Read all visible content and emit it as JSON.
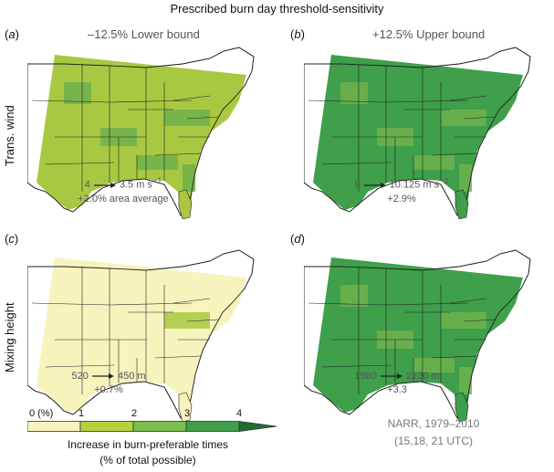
{
  "title": "Prescribed burn day threshold-sensitivity",
  "columns": [
    "–12.5% Lower bound",
    "+12.5% Upper bound"
  ],
  "rows": [
    "Trans. wind",
    "Mixing height"
  ],
  "panels": [
    {
      "label": "a",
      "change_from": "4",
      "change_to": "3.5 m s",
      "unit_exp": "−1",
      "area_avg": "+2.0% area average",
      "base_color": "#a8c842",
      "accent_color": "#6fb24c"
    },
    {
      "label": "b",
      "change_from": "9",
      "change_to": "10.125 m s",
      "unit_exp": "−1",
      "area_avg": "+2.9%",
      "base_color": "#3f9f4a",
      "accent_color": "#6fb24c"
    },
    {
      "label": "c",
      "change_from": "520",
      "change_to": "450 m",
      "unit_exp": "",
      "area_avg": "+0.7%",
      "base_color": "#f7f3bd",
      "accent_color": "#a8c842"
    },
    {
      "label": "d",
      "change_from": "1980",
      "change_to": "2230 m",
      "unit_exp": "",
      "area_avg": "+3.3",
      "base_color": "#3f9f4a",
      "accent_color": "#6fb24c"
    }
  ],
  "colorbar": {
    "ticks": [
      "0 (%)",
      "1",
      "2",
      "3",
      "4"
    ],
    "colors": [
      "#f7f3bd",
      "#b5d23d",
      "#7abf4f",
      "#3f9f4a",
      "#1f6e33"
    ],
    "title_line1": "Increase in burn-preferable times",
    "title_line2": "(% of total possible)"
  },
  "note": {
    "line1": "NARR, 1979–2010",
    "line2": "(15,18, 21 UTC)"
  }
}
